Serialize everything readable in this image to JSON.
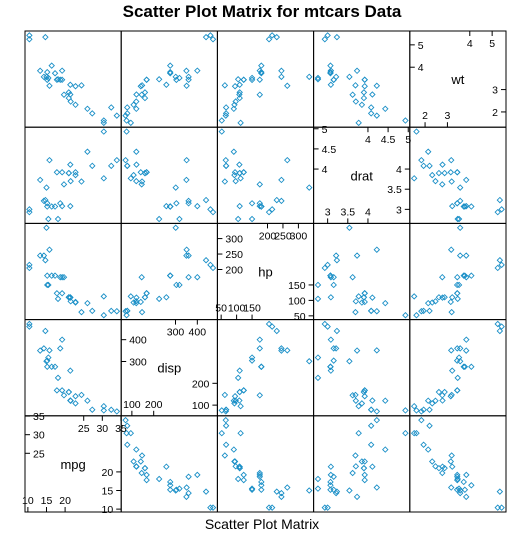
{
  "chart_data": {
    "type": "scatter",
    "title": "Scatter Plot Matrix for mtcars Data",
    "subtitle": "Scatter Plot Matrix",
    "variables": [
      {
        "name": "mpg",
        "range": [
          10.4,
          33.9
        ],
        "ticks_low": [
          10,
          15,
          20
        ],
        "ticks_high": [
          25,
          30,
          35
        ]
      },
      {
        "name": "disp",
        "range": [
          71.1,
          472
        ],
        "ticks_low": [
          100,
          200
        ],
        "ticks_high": [
          300,
          400
        ]
      },
      {
        "name": "hp",
        "range": [
          52,
          335
        ],
        "ticks_low": [
          50,
          100,
          150
        ],
        "ticks_high": [
          200,
          250,
          300
        ]
      },
      {
        "name": "drat",
        "range": [
          2.76,
          4.93
        ],
        "ticks_low": [
          3.0,
          3.5,
          4.0
        ],
        "ticks_high": [
          4.0,
          4.5,
          5.0
        ]
      },
      {
        "name": "wt",
        "range": [
          1.513,
          5.424
        ],
        "ticks_low": [
          2,
          3
        ],
        "ticks_high": [
          4,
          5
        ]
      }
    ],
    "data": {
      "mpg": [
        21,
        21,
        22.8,
        21.4,
        18.7,
        18.1,
        14.3,
        24.4,
        22.8,
        19.2,
        17.8,
        16.4,
        17.3,
        15.2,
        10.4,
        10.4,
        14.7,
        32.4,
        30.4,
        33.9,
        21.5,
        15.5,
        15.2,
        13.3,
        19.2,
        27.3,
        26,
        30.4,
        15.8,
        19.7,
        15,
        21.4
      ],
      "disp": [
        160,
        160,
        108,
        258,
        360,
        225,
        360,
        146.7,
        140.8,
        167.6,
        167.6,
        275.8,
        275.8,
        275.8,
        472,
        460,
        440,
        78.7,
        75.7,
        71.1,
        120.1,
        318,
        304,
        350,
        400,
        79,
        120.3,
        95.1,
        351,
        145,
        301,
        121
      ],
      "hp": [
        110,
        110,
        93,
        110,
        175,
        105,
        245,
        62,
        95,
        123,
        123,
        180,
        180,
        180,
        205,
        215,
        230,
        66,
        52,
        65,
        97,
        150,
        150,
        245,
        175,
        66,
        91,
        113,
        264,
        175,
        335,
        109
      ],
      "drat": [
        3.9,
        3.9,
        3.85,
        3.08,
        3.15,
        2.76,
        3.21,
        3.69,
        3.92,
        3.92,
        3.92,
        3.07,
        3.07,
        3.07,
        2.93,
        3,
        3.23,
        4.08,
        4.93,
        4.22,
        3.7,
        2.76,
        3.15,
        3.73,
        3.08,
        4.08,
        4.43,
        3.77,
        4.22,
        3.62,
        3.54,
        4.11
      ],
      "wt": [
        2.62,
        2.875,
        2.32,
        3.215,
        3.44,
        3.46,
        3.57,
        3.19,
        3.15,
        3.44,
        3.44,
        4.07,
        3.73,
        3.78,
        5.25,
        5.424,
        5.345,
        2.2,
        1.615,
        1.835,
        2.465,
        3.52,
        3.435,
        3.84,
        3.845,
        1.935,
        2.14,
        1.513,
        3.17,
        2.77,
        3.57,
        2.78
      ]
    },
    "grid": false,
    "legend": "none"
  },
  "colors": {
    "points": "#1a8fc7",
    "frame": "#000000",
    "background": "#ffffff"
  }
}
